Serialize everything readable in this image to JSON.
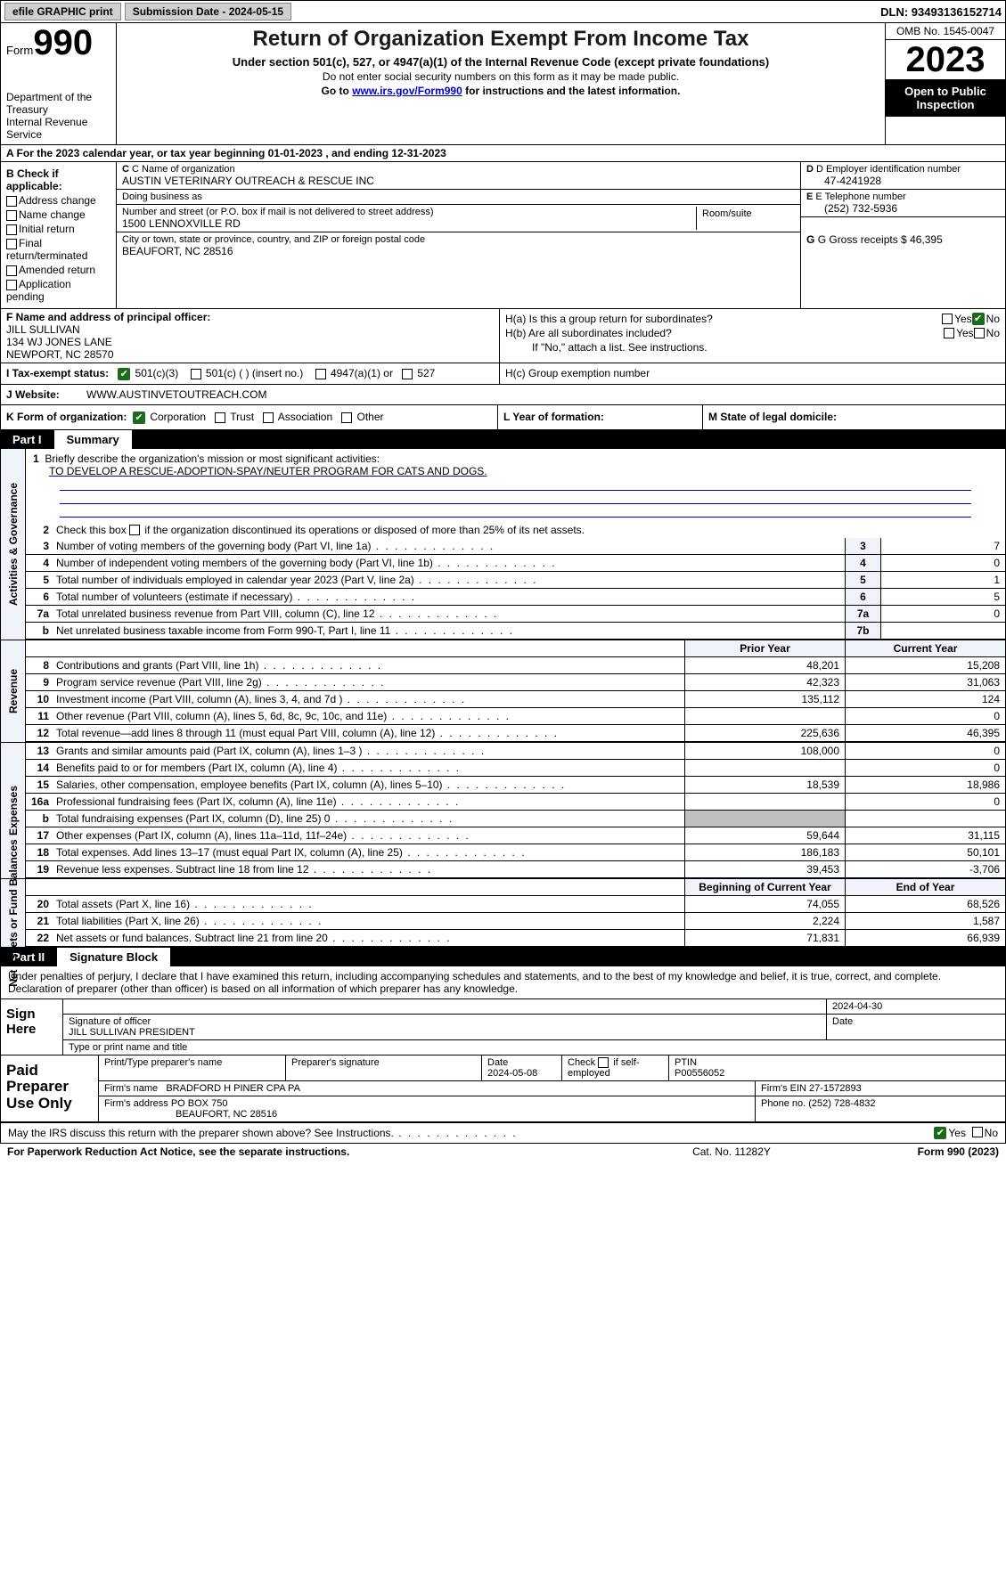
{
  "topbar": {
    "efile_label": "efile GRAPHIC print",
    "submission_label": "Submission Date - 2024-05-15",
    "dln_label": "DLN: 93493136152714"
  },
  "header": {
    "form_word": "Form",
    "form_num": "990",
    "dept": "Department of the Treasury",
    "irs": "Internal Revenue Service",
    "title": "Return of Organization Exempt From Income Tax",
    "sub": "Under section 501(c), 527, or 4947(a)(1) of the Internal Revenue Code (except private foundations)",
    "note1": "Do not enter social security numbers on this form as it may be made public.",
    "note2_pre": "Go to ",
    "note2_link": "www.irs.gov/Form990",
    "note2_post": " for instructions and the latest information.",
    "omb": "OMB No. 1545-0047",
    "year": "2023",
    "inspect": "Open to Public Inspection"
  },
  "row_a": {
    "text_pre": "A For the 2023 calendar year, or tax year beginning ",
    "begin": "01-01-2023",
    "mid": " , and ending ",
    "end": "12-31-2023"
  },
  "section_b": {
    "label": "B Check if applicable:",
    "opts": [
      "Address change",
      "Name change",
      "Initial return",
      "Final return/terminated",
      "Amended return",
      "Application pending"
    ]
  },
  "section_c": {
    "name_label": "C Name of organization",
    "name": "AUSTIN VETERINARY OUTREACH & RESCUE INC",
    "dba_label": "Doing business as",
    "dba": "",
    "street_label": "Number and street (or P.O. box if mail is not delivered to street address)",
    "street": "1500 LENNOXVILLE RD",
    "room_label": "Room/suite",
    "city_label": "City or town, state or province, country, and ZIP or foreign postal code",
    "city": "BEAUFORT, NC  28516"
  },
  "section_d": {
    "label": "D Employer identification number",
    "val": "47-4241928"
  },
  "section_e": {
    "label": "E Telephone number",
    "val": "(252) 732-5936"
  },
  "section_g": {
    "label": "G Gross receipts $ ",
    "val": "46,395"
  },
  "section_f": {
    "label": "F  Name and address of principal officer:",
    "name": "JILL SULLIVAN",
    "addr1": "134 WJ JONES LANE",
    "addr2": "NEWPORT, NC  28570"
  },
  "section_h": {
    "ha_label": "H(a)  Is this a group return for subordinates?",
    "hb_label": "H(b)  Are all subordinates included?",
    "hb_note": "If \"No,\" attach a list. See instructions.",
    "hc_label": "H(c)  Group exemption number ",
    "yes": "Yes",
    "no": "No"
  },
  "row_i": {
    "label": "I  Tax-exempt status:",
    "o1": "501(c)(3)",
    "o2": "501(c) (  ) (insert no.)",
    "o3": "4947(a)(1) or",
    "o4": "527"
  },
  "row_j": {
    "label": "J  Website: ",
    "val": "WWW.AUSTINVETOUTREACH.COM"
  },
  "row_k": {
    "label": "K Form of organization:",
    "o1": "Corporation",
    "o2": "Trust",
    "o3": "Association",
    "o4": "Other"
  },
  "row_l": {
    "label": "L Year of formation:"
  },
  "row_m": {
    "label": "M State of legal domicile:"
  },
  "part1": {
    "num": "Part I",
    "title": "Summary"
  },
  "vtabs": {
    "ag": "Activities & Governance",
    "rev": "Revenue",
    "exp": "Expenses",
    "na": "Net Assets or Fund Balances"
  },
  "mission": {
    "label": "Briefly describe the organization's mission or most significant activities:",
    "text": "TO DEVELOP A RESCUE-ADOPTION-SPAY/NEUTER PROGRAM FOR CATS AND DOGS."
  },
  "line2": "Check this box    if the organization discontinued its operations or disposed of more than 25% of its net assets.",
  "ag_lines": [
    {
      "n": "3",
      "d": "Number of voting members of the governing body (Part VI, line 1a)",
      "b": "3",
      "v": "7"
    },
    {
      "n": "4",
      "d": "Number of independent voting members of the governing body (Part VI, line 1b)",
      "b": "4",
      "v": "0"
    },
    {
      "n": "5",
      "d": "Total number of individuals employed in calendar year 2023 (Part V, line 2a)",
      "b": "5",
      "v": "1"
    },
    {
      "n": "6",
      "d": "Total number of volunteers (estimate if necessary)",
      "b": "6",
      "v": "5"
    },
    {
      "n": "7a",
      "d": "Total unrelated business revenue from Part VIII, column (C), line 12",
      "b": "7a",
      "v": "0"
    },
    {
      "n": "b",
      "d": "Net unrelated business taxable income from Form 990-T, Part I, line 11",
      "b": "7b",
      "v": ""
    }
  ],
  "col_hdr": {
    "prior": "Prior Year",
    "curr": "Current Year"
  },
  "rev_lines": [
    {
      "n": "8",
      "d": "Contributions and grants (Part VIII, line 1h)",
      "p": "48,201",
      "c": "15,208"
    },
    {
      "n": "9",
      "d": "Program service revenue (Part VIII, line 2g)",
      "p": "42,323",
      "c": "31,063"
    },
    {
      "n": "10",
      "d": "Investment income (Part VIII, column (A), lines 3, 4, and 7d )",
      "p": "135,112",
      "c": "124"
    },
    {
      "n": "11",
      "d": "Other revenue (Part VIII, column (A), lines 5, 6d, 8c, 9c, 10c, and 11e)",
      "p": "",
      "c": "0"
    },
    {
      "n": "12",
      "d": "Total revenue—add lines 8 through 11 (must equal Part VIII, column (A), line 12)",
      "p": "225,636",
      "c": "46,395"
    }
  ],
  "exp_lines": [
    {
      "n": "13",
      "d": "Grants and similar amounts paid (Part IX, column (A), lines 1–3 )",
      "p": "108,000",
      "c": "0"
    },
    {
      "n": "14",
      "d": "Benefits paid to or for members (Part IX, column (A), line 4)",
      "p": "",
      "c": "0"
    },
    {
      "n": "15",
      "d": "Salaries, other compensation, employee benefits (Part IX, column (A), lines 5–10)",
      "p": "18,539",
      "c": "18,986"
    },
    {
      "n": "16a",
      "d": "Professional fundraising fees (Part IX, column (A), line 11e)",
      "p": "",
      "c": "0"
    },
    {
      "n": "b",
      "d": "Total fundraising expenses (Part IX, column (D), line 25) 0",
      "p": "GREY",
      "c": "GREY"
    },
    {
      "n": "17",
      "d": "Other expenses (Part IX, column (A), lines 11a–11d, 11f–24e)",
      "p": "59,644",
      "c": "31,115"
    },
    {
      "n": "18",
      "d": "Total expenses. Add lines 13–17 (must equal Part IX, column (A), line 25)",
      "p": "186,183",
      "c": "50,101"
    },
    {
      "n": "19",
      "d": "Revenue less expenses. Subtract line 18 from line 12",
      "p": "39,453",
      "c": "-3,706"
    }
  ],
  "na_hdr": {
    "prior": "Beginning of Current Year",
    "curr": "End of Year"
  },
  "na_lines": [
    {
      "n": "20",
      "d": "Total assets (Part X, line 16)",
      "p": "74,055",
      "c": "68,526"
    },
    {
      "n": "21",
      "d": "Total liabilities (Part X, line 26)",
      "p": "2,224",
      "c": "1,587"
    },
    {
      "n": "22",
      "d": "Net assets or fund balances. Subtract line 21 from line 20",
      "p": "71,831",
      "c": "66,939"
    }
  ],
  "part2": {
    "num": "Part II",
    "title": "Signature Block"
  },
  "sig": {
    "intro": "Under penalties of perjury, I declare that I have examined this return, including accompanying schedules and statements, and to the best of my knowledge and belief, it is true, correct, and complete. Declaration of preparer (other than officer) is based on all information of which preparer has any knowledge.",
    "sign_here": "Sign Here",
    "sig_officer_label": "Signature of officer",
    "officer_name": "JILL SULLIVAN PRESIDENT",
    "type_label": "Type or print name and title",
    "date_label": "Date",
    "date_val": "2024-04-30"
  },
  "prep": {
    "label": "Paid Preparer Use Only",
    "print_label": "Print/Type preparer's name",
    "sig_label": "Preparer's signature",
    "date_label": "Date",
    "date_val": "2024-05-08",
    "check_label": "Check    if self-employed",
    "ptin_label": "PTIN",
    "ptin_val": "P00556052",
    "firm_name_label": "Firm's name ",
    "firm_name": "BRADFORD H PINER CPA PA",
    "firm_ein_label": "Firm's EIN ",
    "firm_ein": "27-1572893",
    "firm_addr_label": "Firm's address ",
    "firm_addr1": "PO BOX 750",
    "firm_addr2": "BEAUFORT, NC  28516",
    "phone_label": "Phone no. ",
    "phone": "(252) 728-4832"
  },
  "discuss": {
    "text": "May the IRS discuss this return with the preparer shown above? See Instructions.",
    "yes": "Yes",
    "no": "No"
  },
  "footer": {
    "f1": "For Paperwork Reduction Act Notice, see the separate instructions.",
    "f2": "Cat. No. 11282Y",
    "f3_pre": "Form ",
    "f3_b": "990",
    "f3_post": " (2023)"
  }
}
